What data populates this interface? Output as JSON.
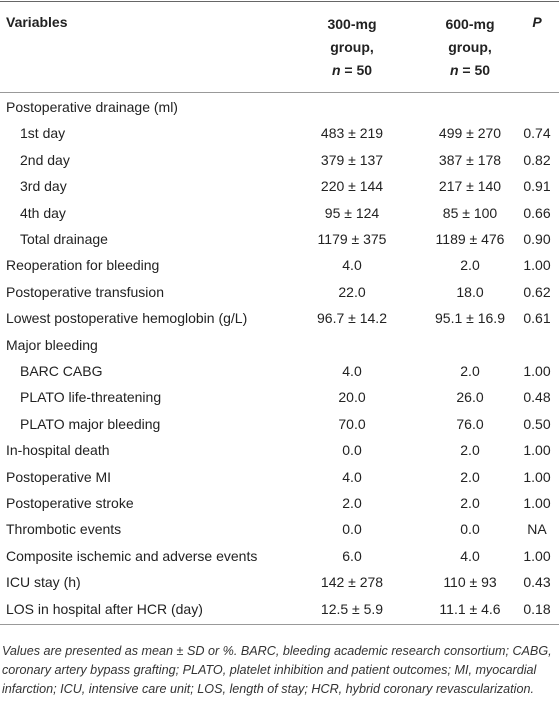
{
  "table": {
    "header": {
      "variables": "Variables",
      "groups": [
        {
          "label": "300-mg group,",
          "n_label": "n",
          "n_value": "= 50"
        },
        {
          "label": "600-mg group,",
          "n_label": "n",
          "n_value": "= 50"
        }
      ],
      "p": "P"
    },
    "rows": [
      {
        "label": "Postoperative drainage (ml)",
        "cells": [],
        "sub": false
      },
      {
        "label": "1st day",
        "cells": [
          "483 ± 219",
          "499 ± 270",
          "0.74"
        ],
        "sub": true
      },
      {
        "label": "2nd day",
        "cells": [
          "379 ± 137",
          "387 ± 178",
          "0.82"
        ],
        "sub": true
      },
      {
        "label": "3rd day",
        "cells": [
          "220 ± 144",
          "217 ± 140",
          "0.91"
        ],
        "sub": true
      },
      {
        "label": "4th day",
        "cells": [
          "95 ± 124",
          "85 ± 100",
          "0.66"
        ],
        "sub": true
      },
      {
        "label": "Total drainage",
        "cells": [
          "1179 ± 375",
          "1189 ± 476",
          "0.90"
        ],
        "sub": true
      },
      {
        "label": "Reoperation for bleeding",
        "cells": [
          "4.0",
          "2.0",
          "1.00"
        ],
        "sub": false
      },
      {
        "label": "Postoperative transfusion",
        "cells": [
          "22.0",
          "18.0",
          "0.62"
        ],
        "sub": false
      },
      {
        "label": "Lowest postoperative hemoglobin (g/L)",
        "cells": [
          "96.7 ± 14.2",
          "95.1 ± 16.9",
          "0.61"
        ],
        "sub": false
      },
      {
        "label": "Major bleeding",
        "cells": [],
        "sub": false
      },
      {
        "label": "BARC CABG",
        "cells": [
          "4.0",
          "2.0",
          "1.00"
        ],
        "sub": true
      },
      {
        "label": "PLATO life-threatening",
        "cells": [
          "20.0",
          "26.0",
          "0.48"
        ],
        "sub": true
      },
      {
        "label": "PLATO major bleeding",
        "cells": [
          "70.0",
          "76.0",
          "0.50"
        ],
        "sub": true
      },
      {
        "label": "In-hospital death",
        "cells": [
          "0.0",
          "2.0",
          "1.00"
        ],
        "sub": false
      },
      {
        "label": "Postoperative MI",
        "cells": [
          "4.0",
          "2.0",
          "1.00"
        ],
        "sub": false
      },
      {
        "label": "Postoperative stroke",
        "cells": [
          "2.0",
          "2.0",
          "1.00"
        ],
        "sub": false
      },
      {
        "label": "Thrombotic events",
        "cells": [
          "0.0",
          "0.0",
          "NA"
        ],
        "sub": false
      },
      {
        "label": "Composite ischemic and adverse events",
        "cells": [
          "6.0",
          "4.0",
          "1.00"
        ],
        "sub": false
      },
      {
        "label": "ICU stay (h)",
        "cells": [
          "142 ± 278",
          "110 ± 93",
          "0.43"
        ],
        "sub": false
      },
      {
        "label": "LOS in hospital after HCR (day)",
        "cells": [
          "12.5 ± 5.9",
          "11.1 ± 4.6",
          "0.18"
        ],
        "sub": false
      }
    ],
    "footnote": "Values are presented as mean ± SD or %. BARC, bleeding academic research consortium; CABG, coronary artery bypass grafting; PLATO, platelet inhibition and patient outcomes; MI, myocardial infarction; ICU, intensive care unit; LOS, length of stay; HCR, hybrid coronary revascularization."
  }
}
